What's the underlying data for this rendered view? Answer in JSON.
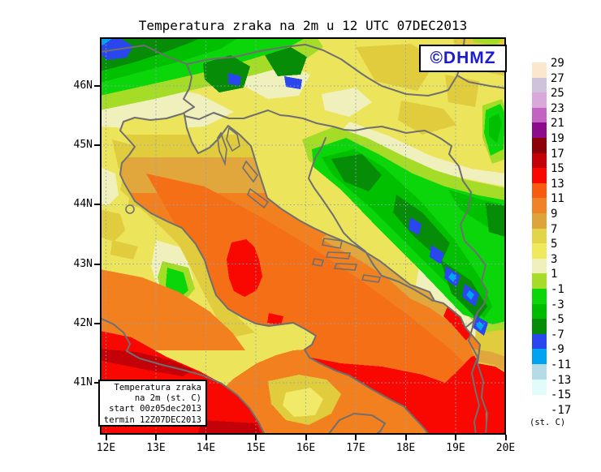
{
  "title": "Temperatura zraka na 2m u 12 UTC 07DEC2013",
  "watermark": {
    "label": "©DHMZ",
    "color": "#1b1bd0"
  },
  "info_box": {
    "lines": [
      "Temperatura zraka",
      "na 2m (st. C)",
      "start 00z05dec2013",
      "termin 12Z07DEC2013"
    ]
  },
  "axes": {
    "lat": [
      "46N",
      "45N",
      "44N",
      "43N",
      "42N",
      "41N"
    ],
    "lon": [
      "12E",
      "13E",
      "14E",
      "15E",
      "16E",
      "17E",
      "18E",
      "19E",
      "20E"
    ]
  },
  "colorbar": {
    "unit": "(st. C)",
    "tick_labels": [
      "29",
      "27",
      "25",
      "23",
      "21",
      "19",
      "17",
      "15",
      "13",
      "11",
      "9",
      "7",
      "5",
      "3",
      "1",
      "-1",
      "-3",
      "-5",
      "-7",
      "-9",
      "-11",
      "-13",
      "-15",
      "-17"
    ],
    "bands": [
      {
        "range": "27..29",
        "color": "#fbe7cd"
      },
      {
        "range": "25..27",
        "color": "#cfc3db"
      },
      {
        "range": "23..25",
        "color": "#daa8da"
      },
      {
        "range": "21..23",
        "color": "#c462c4"
      },
      {
        "range": "19..21",
        "color": "#8c0a8c"
      },
      {
        "range": "17..19",
        "color": "#8e0008"
      },
      {
        "range": "15..17",
        "color": "#c40008"
      },
      {
        "range": "13..15",
        "color": "#f80800"
      },
      {
        "range": "11..13",
        "color": "#f85a10"
      },
      {
        "range": "9..11",
        "color": "#f08228"
      },
      {
        "range": "7..9",
        "color": "#dda43c"
      },
      {
        "range": "5..7",
        "color": "#e3d44a"
      },
      {
        "range": "3..5",
        "color": "#f0e95e"
      },
      {
        "range": "1..3",
        "color": "#eff0bc"
      },
      {
        "range": "-1..1",
        "color": "#a5dc28"
      },
      {
        "range": "-3..-1",
        "color": "#0ad60a"
      },
      {
        "range": "-5..-3",
        "color": "#00bc00"
      },
      {
        "range": "-7..-5",
        "color": "#068c06"
      },
      {
        "range": "-9..-7",
        "color": "#2a46ee"
      },
      {
        "range": "-11..-9",
        "color": "#00a2f2"
      },
      {
        "range": "-13..-11",
        "color": "#b5dbe7"
      },
      {
        "range": "-15..-13",
        "color": "#e2fbfb"
      },
      {
        "range": "-17..-15",
        "color": null
      }
    ]
  },
  "palette": {
    "base_yellow": "#ece45a",
    "light_yellow": "#f0ea68",
    "pale": "#eff0bc",
    "gold": "#e0cc3c",
    "amber": "#e2a73c",
    "orange": "#f2801f",
    "deep_orange": "#f46f15",
    "red": "#f80800",
    "dark_red": "#c40008",
    "yellow_green": "#a5dc28",
    "green_bright": "#0ad60a",
    "green_mid": "#00c000",
    "green_dark": "#068c06",
    "blue": "#2a46ee",
    "sky_blue": "#00a2f2",
    "coast_gray": "#6f6f6f",
    "grid_blue": "#8fa3b8",
    "frame_black": "#000000"
  }
}
